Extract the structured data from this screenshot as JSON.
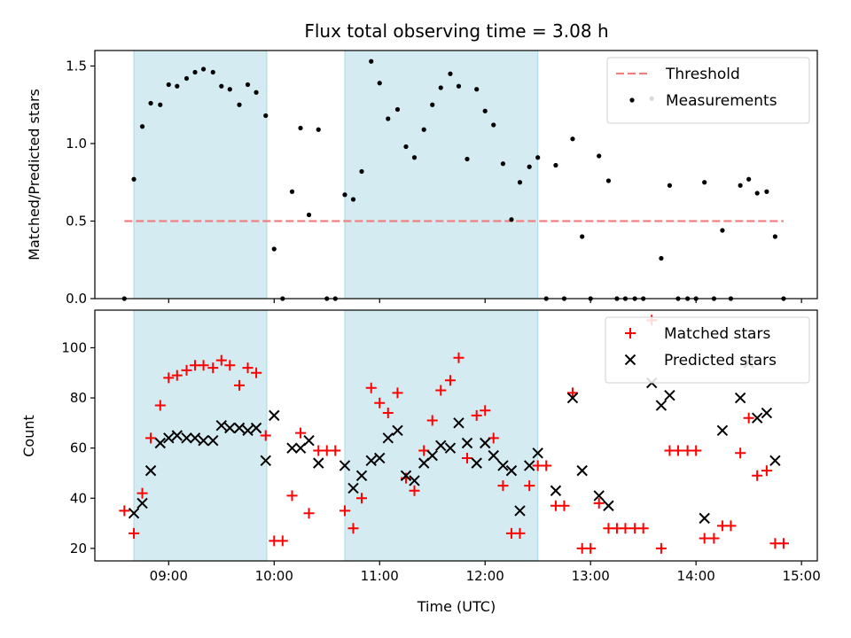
{
  "chart_data": [
    {
      "type": "scatter",
      "title": "Flux total observing time = 3.08 h",
      "xlabel": "",
      "ylabel": "Matched/Predicted stars",
      "x_unit": "hours UTC",
      "xlim": [
        8.3,
        15.15
      ],
      "ylim": [
        0,
        1.6
      ],
      "yticks": [
        0.0,
        0.5,
        1.0,
        1.5
      ],
      "ytick_labels": [
        "0.0",
        "0.5",
        "1.0",
        "1.5"
      ],
      "grid": false,
      "legend_position": "top-right",
      "shaded_intervals": [
        [
          8.67,
          9.93
        ],
        [
          10.67,
          12.5
        ]
      ],
      "threshold": {
        "name": "Threshold",
        "value": 0.5,
        "x_range": [
          8.58,
          14.83
        ],
        "color": "#f08080"
      },
      "series": [
        {
          "name": "Measurements",
          "color": "#000000",
          "points": [
            [
              8.58,
              0.0
            ],
            [
              8.67,
              0.77
            ],
            [
              8.75,
              1.11
            ],
            [
              8.83,
              1.26
            ],
            [
              8.92,
              1.25
            ],
            [
              9.0,
              1.38
            ],
            [
              9.08,
              1.37
            ],
            [
              9.17,
              1.42
            ],
            [
              9.25,
              1.46
            ],
            [
              9.33,
              1.48
            ],
            [
              9.42,
              1.46
            ],
            [
              9.5,
              1.37
            ],
            [
              9.58,
              1.35
            ],
            [
              9.67,
              1.25
            ],
            [
              9.75,
              1.38
            ],
            [
              9.83,
              1.33
            ],
            [
              9.92,
              1.18
            ],
            [
              10.0,
              0.32
            ],
            [
              10.08,
              0.0
            ],
            [
              10.17,
              0.69
            ],
            [
              10.25,
              1.1
            ],
            [
              10.33,
              0.54
            ],
            [
              10.42,
              1.09
            ],
            [
              10.5,
              0.0
            ],
            [
              10.58,
              0.0
            ],
            [
              10.67,
              0.67
            ],
            [
              10.75,
              0.64
            ],
            [
              10.83,
              0.82
            ],
            [
              10.92,
              1.53
            ],
            [
              11.0,
              1.39
            ],
            [
              11.08,
              1.16
            ],
            [
              11.17,
              1.22
            ],
            [
              11.25,
              0.98
            ],
            [
              11.33,
              0.91
            ],
            [
              11.42,
              1.09
            ],
            [
              11.5,
              1.25
            ],
            [
              11.58,
              1.36
            ],
            [
              11.67,
              1.45
            ],
            [
              11.75,
              1.37
            ],
            [
              11.83,
              0.9
            ],
            [
              11.92,
              1.35
            ],
            [
              12.0,
              1.21
            ],
            [
              12.08,
              1.12
            ],
            [
              12.17,
              0.87
            ],
            [
              12.25,
              0.51
            ],
            [
              12.33,
              0.75
            ],
            [
              12.42,
              0.85
            ],
            [
              12.5,
              0.91
            ],
            [
              12.58,
              0.0
            ],
            [
              12.67,
              0.86
            ],
            [
              12.75,
              0.0
            ],
            [
              12.83,
              1.03
            ],
            [
              12.92,
              0.4
            ],
            [
              13.0,
              0.0
            ],
            [
              13.08,
              0.92
            ],
            [
              13.17,
              0.76
            ],
            [
              13.25,
              0.0
            ],
            [
              13.33,
              0.0
            ],
            [
              13.42,
              0.0
            ],
            [
              13.5,
              0.0
            ],
            [
              13.58,
              1.29
            ],
            [
              13.67,
              0.26
            ],
            [
              13.75,
              0.73
            ],
            [
              13.83,
              0.0
            ],
            [
              13.92,
              0.0
            ],
            [
              14.0,
              0.0
            ],
            [
              14.08,
              0.75
            ],
            [
              14.17,
              0.0
            ],
            [
              14.25,
              0.44
            ],
            [
              14.33,
              0.0
            ],
            [
              14.42,
              0.73
            ],
            [
              14.5,
              0.77
            ],
            [
              14.58,
              0.68
            ],
            [
              14.67,
              0.69
            ],
            [
              14.75,
              0.4
            ],
            [
              14.83,
              0.0
            ]
          ]
        }
      ]
    },
    {
      "type": "scatter",
      "title": "",
      "xlabel": "Time (UTC)",
      "ylabel": "Count",
      "x_unit": "hours UTC",
      "xlim": [
        8.3,
        15.15
      ],
      "ylim": [
        15,
        115
      ],
      "yticks": [
        20,
        40,
        60,
        80,
        100
      ],
      "ytick_labels": [
        "20",
        "40",
        "60",
        "80",
        "100"
      ],
      "xticks": [
        9,
        10,
        11,
        12,
        13,
        14,
        15
      ],
      "xtick_labels": [
        "09:00",
        "10:00",
        "11:00",
        "12:00",
        "13:00",
        "14:00",
        "15:00"
      ],
      "grid": false,
      "legend_position": "top-right",
      "shaded_intervals": [
        [
          8.67,
          9.93
        ],
        [
          10.67,
          12.5
        ]
      ],
      "series": [
        {
          "name": "Matched stars",
          "color": "#ff0000",
          "marker": "plus",
          "points": [
            [
              8.58,
              35
            ],
            [
              8.67,
              26
            ],
            [
              8.75,
              42
            ],
            [
              8.83,
              64
            ],
            [
              8.92,
              77
            ],
            [
              9.0,
              88
            ],
            [
              9.08,
              89
            ],
            [
              9.17,
              91
            ],
            [
              9.25,
              93
            ],
            [
              9.33,
              93
            ],
            [
              9.42,
              92
            ],
            [
              9.5,
              95
            ],
            [
              9.58,
              93
            ],
            [
              9.67,
              85
            ],
            [
              9.75,
              92
            ],
            [
              9.83,
              90
            ],
            [
              9.92,
              65
            ],
            [
              10.0,
              23
            ],
            [
              10.08,
              23
            ],
            [
              10.17,
              41
            ],
            [
              10.25,
              66
            ],
            [
              10.33,
              34
            ],
            [
              10.42,
              59
            ],
            [
              10.5,
              59
            ],
            [
              10.58,
              59
            ],
            [
              10.67,
              35
            ],
            [
              10.75,
              28
            ],
            [
              10.83,
              40
            ],
            [
              10.92,
              84
            ],
            [
              11.0,
              78
            ],
            [
              11.08,
              74
            ],
            [
              11.17,
              82
            ],
            [
              11.25,
              48
            ],
            [
              11.33,
              43
            ],
            [
              11.42,
              59
            ],
            [
              11.5,
              71
            ],
            [
              11.58,
              83
            ],
            [
              11.67,
              87
            ],
            [
              11.75,
              96
            ],
            [
              11.83,
              56
            ],
            [
              11.92,
              73
            ],
            [
              12.0,
              75
            ],
            [
              12.08,
              64
            ],
            [
              12.17,
              45
            ],
            [
              12.25,
              26
            ],
            [
              12.33,
              26
            ],
            [
              12.42,
              45
            ],
            [
              12.5,
              53
            ],
            [
              12.58,
              53
            ],
            [
              12.67,
              37
            ],
            [
              12.75,
              37
            ],
            [
              12.83,
              82
            ],
            [
              12.92,
              20
            ],
            [
              13.0,
              20
            ],
            [
              13.08,
              38
            ],
            [
              13.17,
              28
            ],
            [
              13.25,
              28
            ],
            [
              13.33,
              28
            ],
            [
              13.42,
              28
            ],
            [
              13.5,
              28
            ],
            [
              13.58,
              111
            ],
            [
              13.67,
              20
            ],
            [
              13.75,
              59
            ],
            [
              13.83,
              59
            ],
            [
              13.92,
              59
            ],
            [
              14.0,
              59
            ],
            [
              14.08,
              24
            ],
            [
              14.17,
              24
            ],
            [
              14.25,
              29
            ],
            [
              14.33,
              29
            ],
            [
              14.42,
              58
            ],
            [
              14.5,
              72
            ],
            [
              14.58,
              49
            ],
            [
              14.67,
              51
            ],
            [
              14.75,
              22
            ],
            [
              14.83,
              22
            ]
          ]
        },
        {
          "name": "Predicted stars",
          "color": "#000000",
          "marker": "x",
          "points": [
            [
              8.67,
              34
            ],
            [
              8.75,
              38
            ],
            [
              8.83,
              51
            ],
            [
              8.92,
              62
            ],
            [
              9.0,
              64
            ],
            [
              9.08,
              65
            ],
            [
              9.17,
              64
            ],
            [
              9.25,
              64
            ],
            [
              9.33,
              63
            ],
            [
              9.42,
              63
            ],
            [
              9.5,
              69
            ],
            [
              9.58,
              68
            ],
            [
              9.67,
              68
            ],
            [
              9.75,
              67
            ],
            [
              9.83,
              68
            ],
            [
              9.92,
              55
            ],
            [
              10.0,
              73
            ],
            [
              10.17,
              60
            ],
            [
              10.25,
              60
            ],
            [
              10.33,
              63
            ],
            [
              10.42,
              54
            ],
            [
              10.67,
              53
            ],
            [
              10.75,
              44
            ],
            [
              10.83,
              49
            ],
            [
              10.92,
              55
            ],
            [
              11.0,
              56
            ],
            [
              11.08,
              64
            ],
            [
              11.17,
              67
            ],
            [
              11.25,
              49
            ],
            [
              11.33,
              47
            ],
            [
              11.42,
              54
            ],
            [
              11.5,
              57
            ],
            [
              11.58,
              61
            ],
            [
              11.67,
              60
            ],
            [
              11.75,
              70
            ],
            [
              11.83,
              62
            ],
            [
              11.92,
              54
            ],
            [
              12.0,
              62
            ],
            [
              12.08,
              57
            ],
            [
              12.17,
              53
            ],
            [
              12.25,
              51
            ],
            [
              12.33,
              35
            ],
            [
              12.42,
              53
            ],
            [
              12.5,
              58
            ],
            [
              12.67,
              43
            ],
            [
              12.83,
              80
            ],
            [
              12.92,
              51
            ],
            [
              13.08,
              41
            ],
            [
              13.17,
              37
            ],
            [
              13.58,
              86
            ],
            [
              13.67,
              77
            ],
            [
              13.75,
              81
            ],
            [
              14.08,
              32
            ],
            [
              14.25,
              67
            ],
            [
              14.42,
              80
            ],
            [
              14.5,
              94
            ],
            [
              14.58,
              72
            ],
            [
              14.67,
              74
            ],
            [
              14.75,
              55
            ]
          ]
        }
      ]
    }
  ]
}
